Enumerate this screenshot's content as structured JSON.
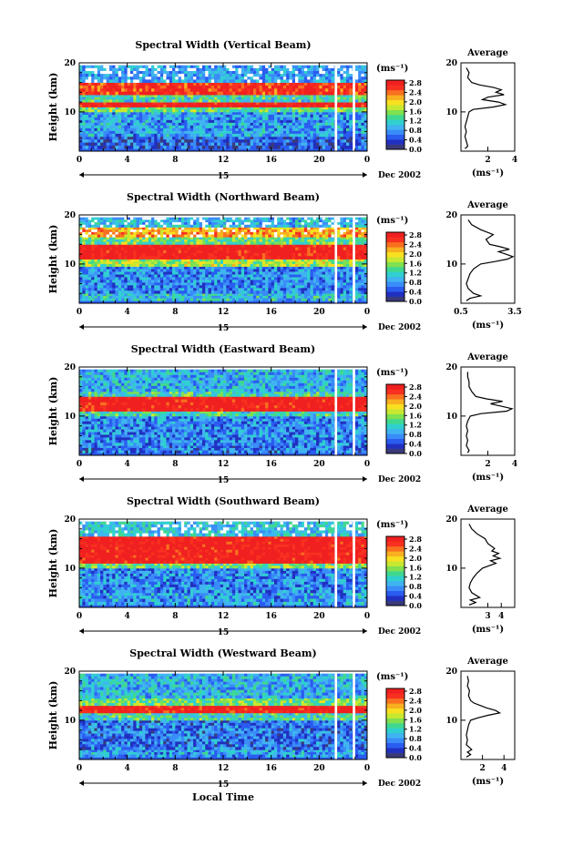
{
  "figure": {
    "xlabel_bottom": "Local Time",
    "date_label": "Dec 2002",
    "day_label": "15",
    "ylabel": "Height (km)",
    "colorbar_unit": "(ms⁻¹)",
    "colorbar_ticks": [
      "2.8",
      "2.4",
      "2.0",
      "1.6",
      "1.2",
      "0.8",
      "0.4",
      "0.0"
    ],
    "average_title": "Average",
    "average_unit": "(ms⁻¹)",
    "colors": {
      "scale": [
        "#3a3a7a",
        "#2030c0",
        "#2a5cf0",
        "#3a8cf8",
        "#40b4f0",
        "#30d0d0",
        "#40d890",
        "#80e050",
        "#c8e830",
        "#f8e020",
        "#f8b020",
        "#f87020",
        "#f83020",
        "#f02020"
      ],
      "missing": "#ffffff"
    }
  },
  "chart_data": [
    {
      "type": "heatmap",
      "title": "Spectral Width (Vertical Beam)",
      "x_ticks": [
        "0",
        "4",
        "8",
        "12",
        "16",
        "20",
        "0"
      ],
      "xlim": [
        0,
        24
      ],
      "y_ticks": [
        "20",
        "10"
      ],
      "ylim": [
        2,
        20
      ],
      "zlim": [
        0,
        2.8
      ],
      "layers": [
        {
          "y0": 2.5,
          "y1": 5,
          "value": 0.5
        },
        {
          "y0": 5,
          "y1": 10,
          "value": 0.8
        },
        {
          "y0": 10,
          "y1": 11,
          "value": 1.4
        },
        {
          "y0": 11,
          "y1": 12,
          "value": 2.8
        },
        {
          "y0": 12,
          "y1": 13.5,
          "value": 1.2
        },
        {
          "y0": 13.5,
          "y1": 16,
          "value": 2.6
        },
        {
          "y0": 16,
          "y1": 19.5,
          "value": 0.9
        }
      ],
      "gaps": [
        [
          21.3,
          21.5
        ],
        [
          22.8,
          23.0
        ]
      ],
      "average": {
        "xlim": [
          0,
          4
        ],
        "x_ticks": [
          "2",
          "4"
        ],
        "y_ticks": [
          "20",
          "10"
        ],
        "ylim": [
          2,
          20
        ],
        "profile": [
          {
            "h": 2.5,
            "v": 0.3
          },
          {
            "h": 3,
            "v": 0.5
          },
          {
            "h": 4,
            "v": 0.4
          },
          {
            "h": 5,
            "v": 0.3
          },
          {
            "h": 6,
            "v": 0.4
          },
          {
            "h": 7,
            "v": 0.3
          },
          {
            "h": 8,
            "v": 0.4
          },
          {
            "h": 9,
            "v": 0.5
          },
          {
            "h": 10,
            "v": 0.6
          },
          {
            "h": 10.5,
            "v": 0.9
          },
          {
            "h": 11,
            "v": 2.4
          },
          {
            "h": 11.5,
            "v": 3.3
          },
          {
            "h": 12,
            "v": 2.8
          },
          {
            "h": 12.5,
            "v": 1.6
          },
          {
            "h": 13,
            "v": 2.0
          },
          {
            "h": 13.5,
            "v": 3.2
          },
          {
            "h": 14,
            "v": 2.6
          },
          {
            "h": 14.5,
            "v": 3.0
          },
          {
            "h": 15,
            "v": 2.4
          },
          {
            "h": 15.5,
            "v": 1.4
          },
          {
            "h": 16,
            "v": 0.8
          },
          {
            "h": 17,
            "v": 0.5
          },
          {
            "h": 18,
            "v": 0.6
          },
          {
            "h": 19,
            "v": 0.4
          }
        ]
      }
    },
    {
      "type": "heatmap",
      "title": "Spectral Width (Northward Beam)",
      "x_ticks": [
        "0",
        "4",
        "8",
        "12",
        "16",
        "20",
        "0"
      ],
      "xlim": [
        0,
        24
      ],
      "y_ticks": [
        "20",
        "10"
      ],
      "ylim": [
        2,
        20
      ],
      "zlim": [
        0,
        2.8
      ],
      "layers": [
        {
          "y0": 2.5,
          "y1": 4,
          "value": 1.0
        },
        {
          "y0": 4,
          "y1": 9.5,
          "value": 0.7
        },
        {
          "y0": 9.5,
          "y1": 11,
          "value": 1.6
        },
        {
          "y0": 11,
          "y1": 14,
          "value": 2.8
        },
        {
          "y0": 14,
          "y1": 15.5,
          "value": 1.4
        },
        {
          "y0": 15.5,
          "y1": 17.5,
          "value": 2.2
        },
        {
          "y0": 17.5,
          "y1": 19.5,
          "value": 1.0
        }
      ],
      "gaps": [
        [
          21.3,
          21.5
        ],
        [
          22.8,
          23.0
        ]
      ],
      "average": {
        "xlim": [
          0.5,
          3.5
        ],
        "x_ticks": [
          "0.5",
          "3.5"
        ],
        "y_ticks": [
          "20",
          "10"
        ],
        "ylim": [
          2,
          20
        ],
        "profile": [
          {
            "h": 2.5,
            "v": 0.8
          },
          {
            "h": 3,
            "v": 1.0
          },
          {
            "h": 3.5,
            "v": 1.6
          },
          {
            "h": 4,
            "v": 1.2
          },
          {
            "h": 5,
            "v": 0.9
          },
          {
            "h": 6,
            "v": 0.8
          },
          {
            "h": 7,
            "v": 0.9
          },
          {
            "h": 8,
            "v": 1.0
          },
          {
            "h": 9,
            "v": 1.2
          },
          {
            "h": 10,
            "v": 1.6
          },
          {
            "h": 10.5,
            "v": 2.4
          },
          {
            "h": 11,
            "v": 3.1
          },
          {
            "h": 11.5,
            "v": 3.4
          },
          {
            "h": 12,
            "v": 3.0
          },
          {
            "h": 12.5,
            "v": 2.6
          },
          {
            "h": 13,
            "v": 3.2
          },
          {
            "h": 13.5,
            "v": 2.7
          },
          {
            "h": 14,
            "v": 2.1
          },
          {
            "h": 15,
            "v": 1.9
          },
          {
            "h": 16,
            "v": 2.3
          },
          {
            "h": 17,
            "v": 1.6
          },
          {
            "h": 18,
            "v": 1.1
          },
          {
            "h": 19,
            "v": 0.9
          }
        ]
      }
    },
    {
      "type": "heatmap",
      "title": "Spectral Width (Eastward Beam)",
      "x_ticks": [
        "0",
        "4",
        "8",
        "12",
        "16",
        "20",
        "0"
      ],
      "xlim": [
        0,
        24
      ],
      "y_ticks": [
        "20",
        "10"
      ],
      "ylim": [
        2,
        20
      ],
      "zlim": [
        0,
        2.8
      ],
      "layers": [
        {
          "y0": 2.5,
          "y1": 4,
          "value": 0.6
        },
        {
          "y0": 4,
          "y1": 10,
          "value": 0.7
        },
        {
          "y0": 10,
          "y1": 11,
          "value": 1.2
        },
        {
          "y0": 11,
          "y1": 14,
          "value": 2.8
        },
        {
          "y0": 14,
          "y1": 15,
          "value": 1.2
        },
        {
          "y0": 15,
          "y1": 19.5,
          "value": 0.9
        }
      ],
      "gaps": [
        [
          21.3,
          21.5
        ],
        [
          22.8,
          23.0
        ]
      ],
      "average": {
        "xlim": [
          0,
          4
        ],
        "x_ticks": [
          "2",
          "4"
        ],
        "y_ticks": [
          "20",
          "10"
        ],
        "ylim": [
          2,
          20
        ],
        "profile": [
          {
            "h": 2.5,
            "v": 0.5
          },
          {
            "h": 3,
            "v": 0.6
          },
          {
            "h": 4,
            "v": 0.4
          },
          {
            "h": 5,
            "v": 0.5
          },
          {
            "h": 6,
            "v": 0.4
          },
          {
            "h": 7,
            "v": 0.5
          },
          {
            "h": 8,
            "v": 0.4
          },
          {
            "h": 9,
            "v": 0.5
          },
          {
            "h": 10,
            "v": 0.7
          },
          {
            "h": 10.5,
            "v": 1.5
          },
          {
            "h": 11,
            "v": 3.4
          },
          {
            "h": 11.5,
            "v": 3.8
          },
          {
            "h": 12,
            "v": 3.0
          },
          {
            "h": 12.5,
            "v": 2.2
          },
          {
            "h": 13,
            "v": 3.1
          },
          {
            "h": 13.5,
            "v": 1.9
          },
          {
            "h": 14,
            "v": 1.1
          },
          {
            "h": 15,
            "v": 0.8
          },
          {
            "h": 16,
            "v": 0.6
          },
          {
            "h": 17,
            "v": 0.6
          },
          {
            "h": 18,
            "v": 0.5
          },
          {
            "h": 19,
            "v": 0.5
          }
        ]
      }
    },
    {
      "type": "heatmap",
      "title": "Spectral Width (Southward Beam)",
      "x_ticks": [
        "0",
        "4",
        "8",
        "12",
        "16",
        "20",
        "0"
      ],
      "xlim": [
        0,
        24
      ],
      "y_ticks": [
        "20",
        "10"
      ],
      "ylim": [
        2,
        20
      ],
      "zlim": [
        0,
        2.8
      ],
      "layers": [
        {
          "y0": 2.5,
          "y1": 5,
          "value": 0.8
        },
        {
          "y0": 5,
          "y1": 10,
          "value": 0.7
        },
        {
          "y0": 10,
          "y1": 11,
          "value": 1.4
        },
        {
          "y0": 11,
          "y1": 16.5,
          "value": 2.8
        },
        {
          "y0": 16.5,
          "y1": 19.5,
          "value": 1.1
        }
      ],
      "gaps": [
        [
          21.3,
          21.5
        ],
        [
          22.8,
          23.0
        ]
      ],
      "average": {
        "xlim": [
          1,
          5
        ],
        "x_ticks": [
          "3",
          "4"
        ],
        "y_ticks": [
          "20",
          "10"
        ],
        "ylim": [
          2,
          20
        ],
        "profile": [
          {
            "h": 2.5,
            "v": 1.6
          },
          {
            "h": 3,
            "v": 2.1
          },
          {
            "h": 3.5,
            "v": 1.7
          },
          {
            "h": 4,
            "v": 2.4
          },
          {
            "h": 5,
            "v": 1.8
          },
          {
            "h": 6,
            "v": 1.6
          },
          {
            "h": 7,
            "v": 1.7
          },
          {
            "h": 8,
            "v": 1.9
          },
          {
            "h": 9,
            "v": 2.2
          },
          {
            "h": 10,
            "v": 2.6
          },
          {
            "h": 10.5,
            "v": 3.1
          },
          {
            "h": 11,
            "v": 3.6
          },
          {
            "h": 11.5,
            "v": 3.2
          },
          {
            "h": 12,
            "v": 3.9
          },
          {
            "h": 12.5,
            "v": 3.4
          },
          {
            "h": 13,
            "v": 3.8
          },
          {
            "h": 13.5,
            "v": 3.3
          },
          {
            "h": 14,
            "v": 3.5
          },
          {
            "h": 15,
            "v": 3.0
          },
          {
            "h": 16,
            "v": 2.8
          },
          {
            "h": 17,
            "v": 2.2
          },
          {
            "h": 18,
            "v": 1.8
          },
          {
            "h": 19,
            "v": 1.6
          }
        ]
      }
    },
    {
      "type": "heatmap",
      "title": "Spectral Width (Westward Beam)",
      "x_ticks": [
        "0",
        "4",
        "8",
        "12",
        "16",
        "20",
        "0"
      ],
      "xlim": [
        0,
        24
      ],
      "y_ticks": [
        "20",
        "10"
      ],
      "ylim": [
        2,
        20
      ],
      "zlim": [
        0,
        2.8
      ],
      "layers": [
        {
          "y0": 2.5,
          "y1": 4,
          "value": 0.8
        },
        {
          "y0": 4,
          "y1": 10,
          "value": 0.6
        },
        {
          "y0": 10,
          "y1": 11.5,
          "value": 1.2
        },
        {
          "y0": 11.5,
          "y1": 13,
          "value": 2.8
        },
        {
          "y0": 13,
          "y1": 14.5,
          "value": 1.4
        },
        {
          "y0": 14.5,
          "y1": 19.5,
          "value": 0.9
        }
      ],
      "gaps": [
        [
          21.3,
          21.5
        ],
        [
          22.8,
          23.0
        ]
      ],
      "average": {
        "xlim": [
          0,
          5
        ],
        "x_ticks": [
          "2",
          "4"
        ],
        "y_ticks": [
          "20",
          "10"
        ],
        "ylim": [
          2,
          20
        ],
        "profile": [
          {
            "h": 2.5,
            "v": 0.5
          },
          {
            "h": 3,
            "v": 0.9
          },
          {
            "h": 3.5,
            "v": 0.6
          },
          {
            "h": 4,
            "v": 1.0
          },
          {
            "h": 5,
            "v": 0.5
          },
          {
            "h": 6,
            "v": 0.6
          },
          {
            "h": 7,
            "v": 0.5
          },
          {
            "h": 8,
            "v": 0.6
          },
          {
            "h": 9,
            "v": 0.7
          },
          {
            "h": 10,
            "v": 0.9
          },
          {
            "h": 10.5,
            "v": 1.6
          },
          {
            "h": 11,
            "v": 2.5
          },
          {
            "h": 11.5,
            "v": 3.6
          },
          {
            "h": 12,
            "v": 3.2
          },
          {
            "h": 12.5,
            "v": 2.4
          },
          {
            "h": 13,
            "v": 1.8
          },
          {
            "h": 13.5,
            "v": 1.2
          },
          {
            "h": 14,
            "v": 0.9
          },
          {
            "h": 15,
            "v": 0.7
          },
          {
            "h": 16,
            "v": 0.8
          },
          {
            "h": 17,
            "v": 0.6
          },
          {
            "h": 18,
            "v": 0.7
          },
          {
            "h": 19,
            "v": 0.6
          }
        ]
      }
    }
  ]
}
